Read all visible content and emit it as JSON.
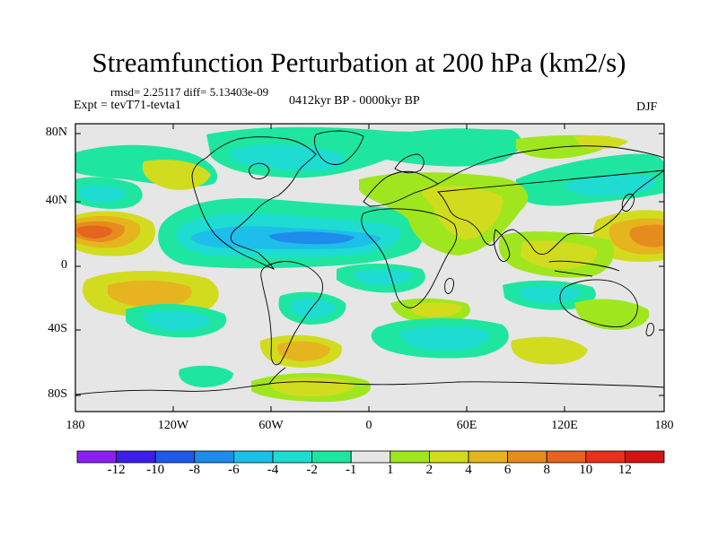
{
  "title": "Streamfunction Perturbation at 200 hPa (km2/s)",
  "stats": "rmsd= 2.25117  diff= 5.13403e-09",
  "experiment": "Expt = tevT71-tevta1",
  "period": "0412kyr BP - 0000kyr BP",
  "season": "DJF",
  "lat_labels": [
    "80N",
    "40N",
    "0",
    "40S",
    "80S"
  ],
  "lon_labels": [
    "180",
    "120W",
    "60W",
    "0",
    "60E",
    "120E",
    "180"
  ],
  "colorbar": {
    "labels": [
      "-12",
      "-10",
      "-8",
      "-6",
      "-4",
      "-2",
      "-1",
      "1",
      "2",
      "4",
      "6",
      "8",
      "10",
      "12"
    ],
    "colors": [
      "#8c1ff0",
      "#3c1ee6",
      "#1e5ae6",
      "#1e8ceb",
      "#1ebeeb",
      "#1edcd2",
      "#1ee6a0",
      "#e6e6e6",
      "#a0e61e",
      "#d2dc1e",
      "#e6b41e",
      "#e68c1e",
      "#e6641e",
      "#e6321e",
      "#d21414"
    ]
  },
  "colors": {
    "neutral": "#e6e6e6",
    "frame": "#000000"
  }
}
